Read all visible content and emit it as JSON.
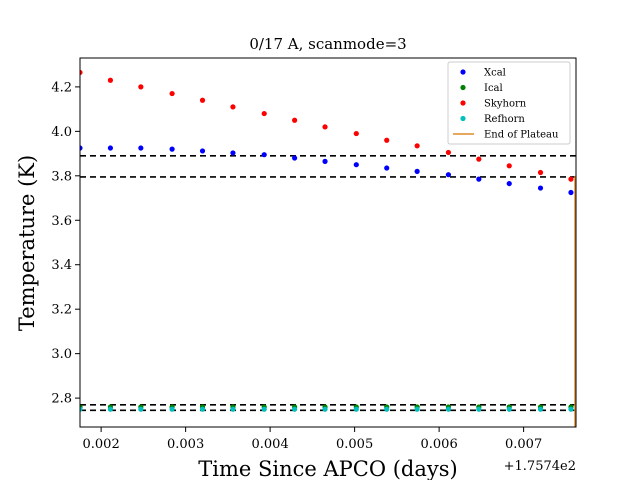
{
  "chart_data": {
    "type": "scatter",
    "title": "0/17 A, scanmode=3",
    "xlabel": "Time Since APCO (days)",
    "ylabel": "Temperature (K)",
    "x_offset_label": "+1.7574e2",
    "xlim": [
      0.00175,
      0.00762
    ],
    "ylim": [
      2.67,
      4.33
    ],
    "xticks": [
      0.002,
      0.003,
      0.004,
      0.005,
      0.006,
      0.007
    ],
    "xtick_labels": [
      "0.002",
      "0.003",
      "0.004",
      "0.005",
      "0.006",
      "0.007"
    ],
    "yticks": [
      2.8,
      3.0,
      3.2,
      3.4,
      3.6,
      3.8,
      4.0,
      4.2
    ],
    "ytick_labels": [
      "2.8",
      "3.0",
      "3.2",
      "3.4",
      "3.6",
      "3.8",
      "4.0",
      "4.2"
    ],
    "grid": false,
    "legend_position": "top-right",
    "x": [
      0.00175,
      0.00211,
      0.00247,
      0.00284,
      0.0032,
      0.00356,
      0.00393,
      0.00429,
      0.00465,
      0.00502,
      0.00538,
      0.00574,
      0.00611,
      0.00647,
      0.00683,
      0.0072,
      0.00756
    ],
    "series": [
      {
        "name": "Xcal",
        "color": "#0000ff",
        "values": [
          3.925,
          3.925,
          3.925,
          3.92,
          3.912,
          3.903,
          3.895,
          3.88,
          3.865,
          3.85,
          3.835,
          3.82,
          3.805,
          3.785,
          3.765,
          3.745,
          3.725
        ]
      },
      {
        "name": "Ical",
        "color": "#008000",
        "values": [
          2.76,
          2.76,
          2.76,
          2.76,
          2.76,
          2.76,
          2.76,
          2.76,
          2.76,
          2.76,
          2.76,
          2.76,
          2.76,
          2.76,
          2.76,
          2.76,
          2.76
        ]
      },
      {
        "name": "Skyhorn",
        "color": "#ff0000",
        "values": [
          4.265,
          4.23,
          4.2,
          4.17,
          4.14,
          4.11,
          4.08,
          4.05,
          4.02,
          3.99,
          3.96,
          3.935,
          3.905,
          3.875,
          3.845,
          3.815,
          3.785
        ]
      },
      {
        "name": "Refhorn",
        "color": "#00bfbf",
        "values": [
          2.75,
          2.75,
          2.75,
          2.75,
          2.75,
          2.75,
          2.75,
          2.75,
          2.75,
          2.75,
          2.75,
          2.75,
          2.75,
          2.75,
          2.75,
          2.75,
          2.75
        ]
      }
    ],
    "hlines": [
      3.89,
      3.795,
      2.77,
      2.745
    ],
    "hline_color": "#000000",
    "vline": {
      "name": "End of Plateau",
      "x": 0.00762,
      "color": "#e08a2c"
    },
    "legend": [
      {
        "name": "Xcal",
        "color": "#0000ff",
        "marker": "dot"
      },
      {
        "name": "Ical",
        "color": "#008000",
        "marker": "dot"
      },
      {
        "name": "Skyhorn",
        "color": "#ff0000",
        "marker": "dot"
      },
      {
        "name": "Refhorn",
        "color": "#00bfbf",
        "marker": "dot"
      },
      {
        "name": "End of Plateau",
        "color": "#e08a2c",
        "marker": "line"
      }
    ]
  }
}
